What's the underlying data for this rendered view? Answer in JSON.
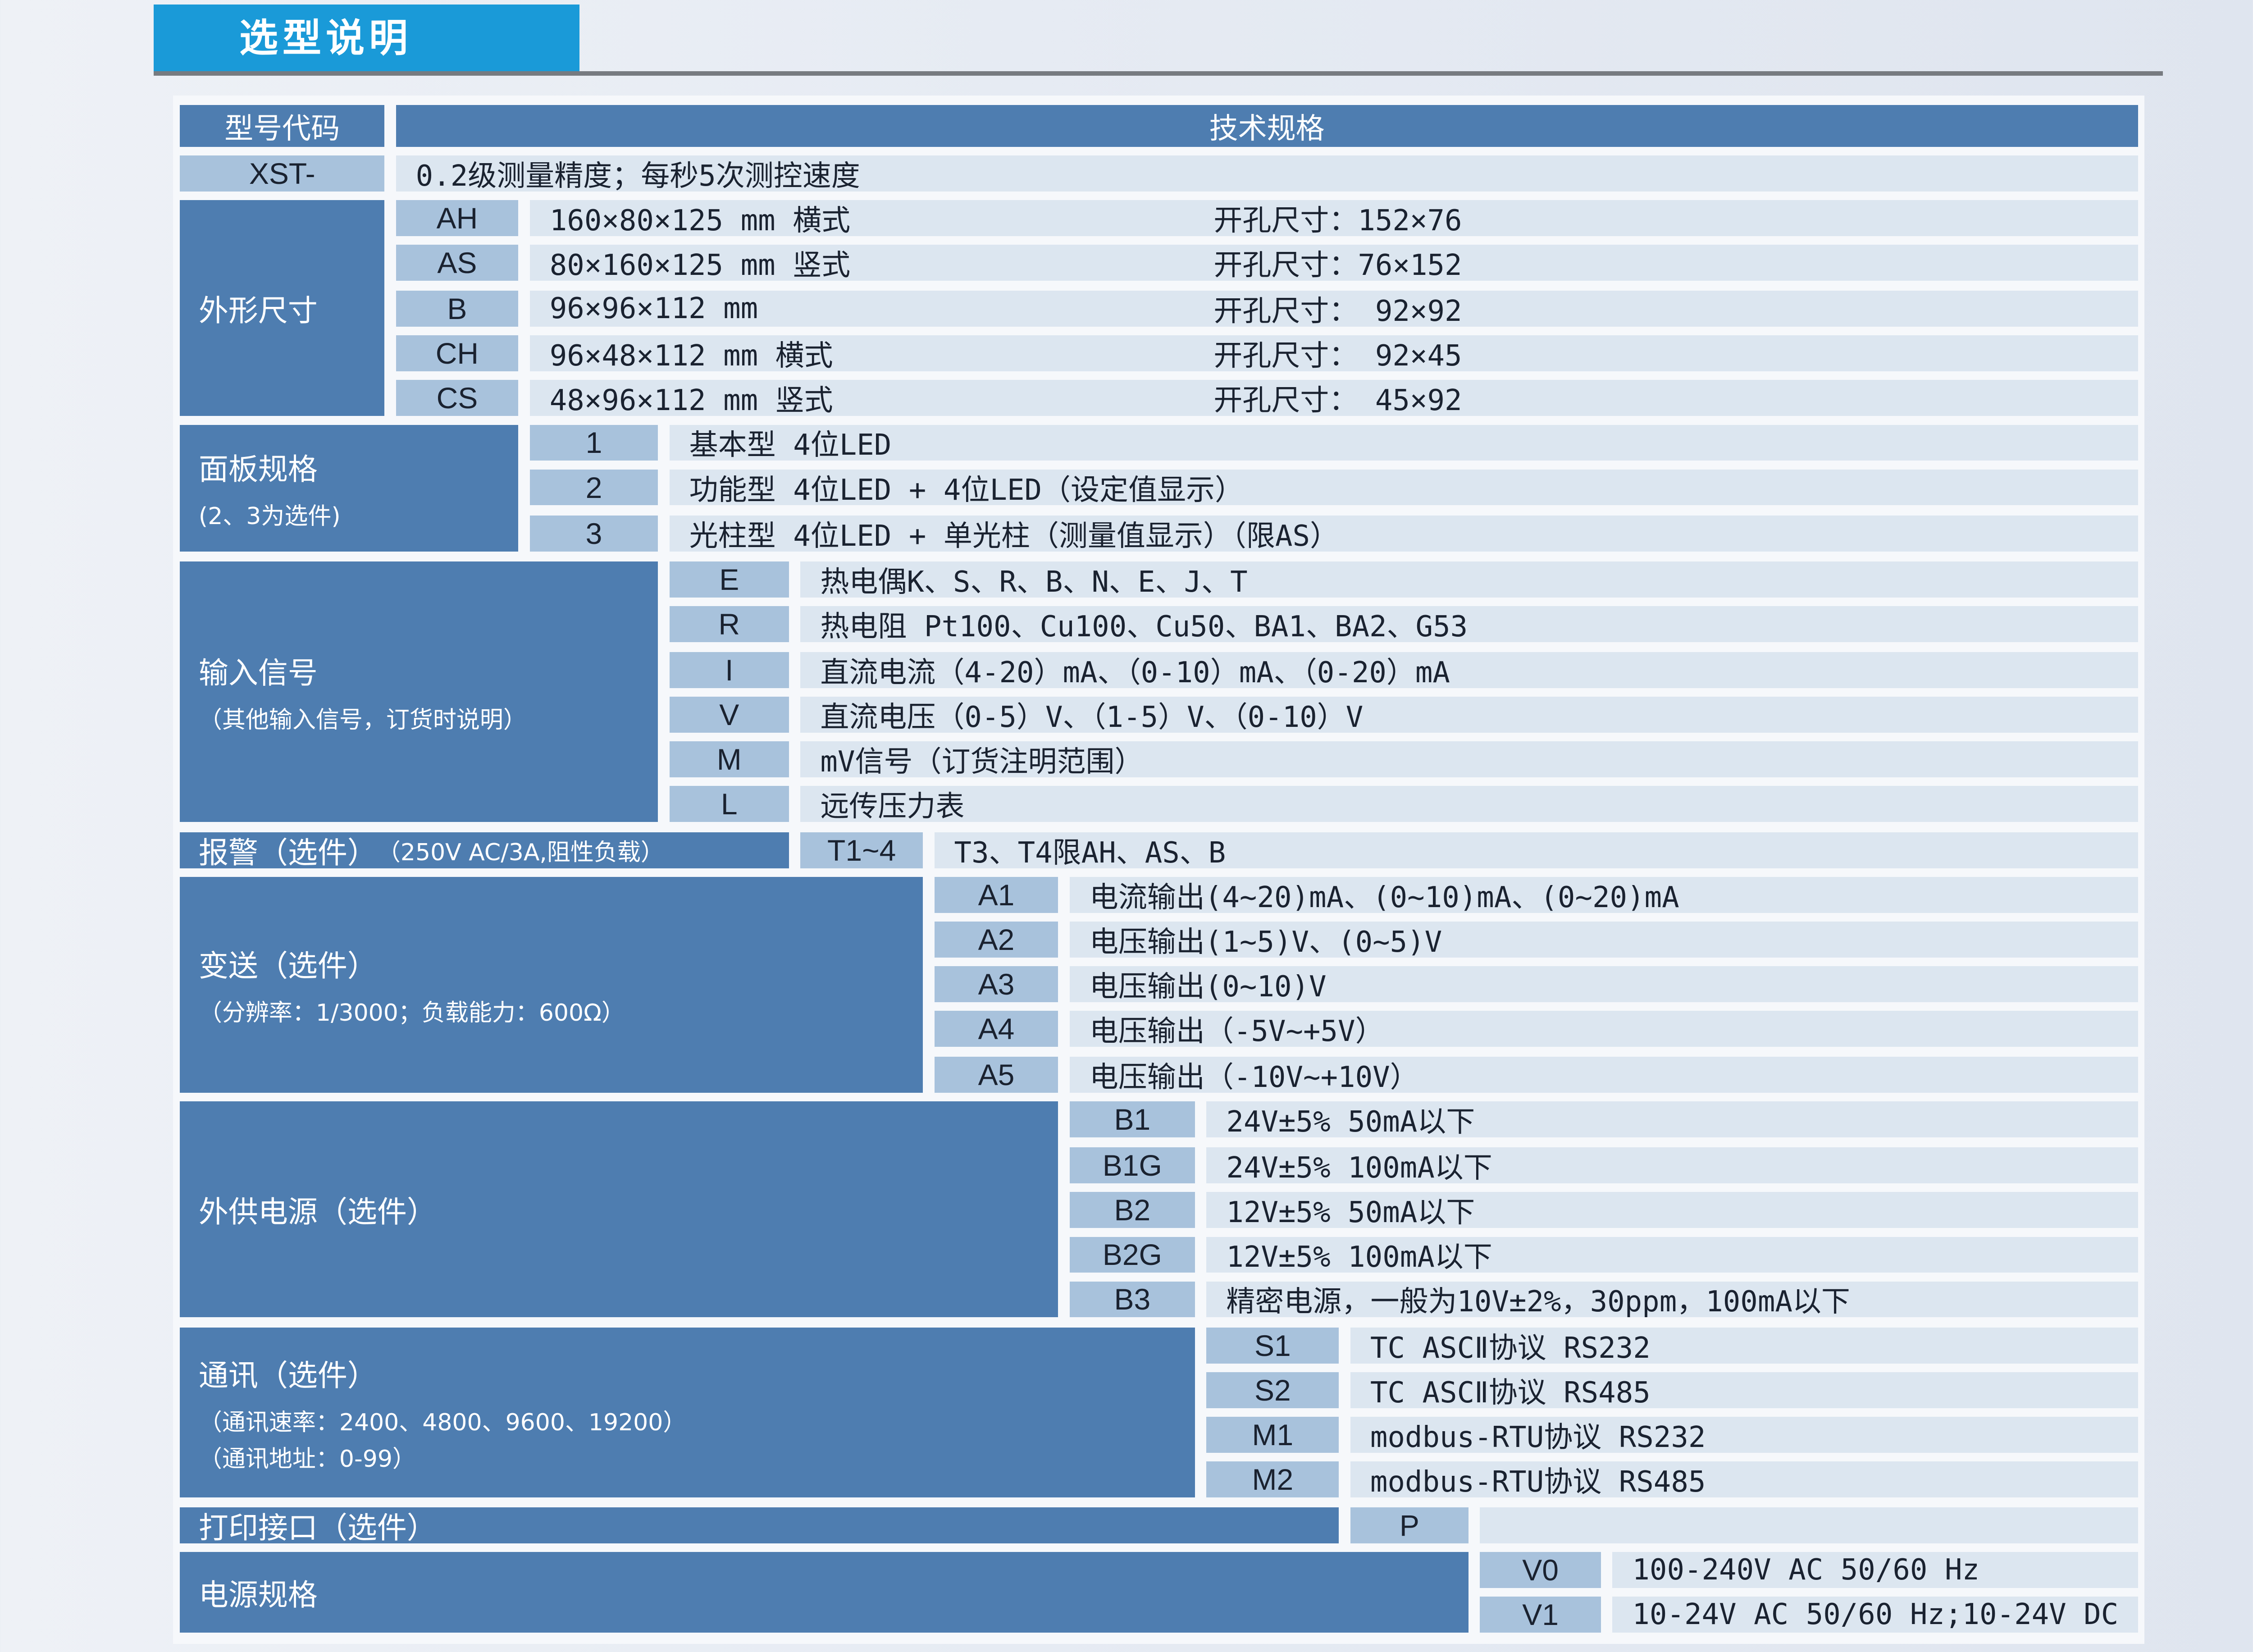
{
  "section_title": "选型说明",
  "header": {
    "code": "型号代码",
    "spec": "技术规格"
  },
  "xst": {
    "code": "XST-",
    "text": "0.2级测量精度；每秒5次测控速度"
  },
  "size": {
    "title": "外形尺寸",
    "rows": [
      {
        "code": "AH",
        "dim": "160×80×125 mm 横式",
        "hole": "开孔尺寸：152×76"
      },
      {
        "code": "AS",
        "dim": " 80×160×125 mm 竖式",
        "hole": "开孔尺寸：76×152"
      },
      {
        "code": "B",
        "dim": " 96×96×112 mm",
        "hole": "开孔尺寸： 92×92"
      },
      {
        "code": "CH",
        "dim": " 96×48×112 mm 横式",
        "hole": "开孔尺寸： 92×45"
      },
      {
        "code": "CS",
        "dim": " 48×96×112 mm 竖式",
        "hole": "开孔尺寸： 45×92"
      }
    ]
  },
  "panel": {
    "title": "面板规格",
    "note": "(2、3为选件)",
    "rows": [
      {
        "code": "1",
        "text": "基本型 4位LED"
      },
      {
        "code": "2",
        "text": "功能型 4位LED + 4位LED（设定值显示）"
      },
      {
        "code": "3",
        "text": "光柱型 4位LED + 单光柱（测量值显示）（限AS）"
      }
    ]
  },
  "input": {
    "title": "输入信号",
    "note": "（其他输入信号，订货时说明）",
    "rows": [
      {
        "code": "E",
        "text": "热电偶K、S、R、B、N、E、J、T"
      },
      {
        "code": "R",
        "text": "热电阻 Pt100、Cu100、Cu50、BA1、BA2、G53"
      },
      {
        "code": "I",
        "text": "直流电流（4-20）mA、（0-10）mA、（0-20）mA"
      },
      {
        "code": "V",
        "text": "直流电压（0-5）V、（1-5）V、（0-10）V"
      },
      {
        "code": "M",
        "text": "mV信号（订货注明范围）"
      },
      {
        "code": "L",
        "text": "远传压力表"
      }
    ]
  },
  "alarm": {
    "title": "报警（选件）",
    "note": "（250V AC/3A,阻性负载）",
    "code": "T1~4",
    "text": "T3、T4限AH、AS、B"
  },
  "transmit": {
    "title": "变送（选件）",
    "note": "（分辨率：1/3000；负载能力：600Ω）",
    "rows": [
      {
        "code": "A1",
        "text": "电流输出(4~20)mA、(0~10)mA、(0~20)mA"
      },
      {
        "code": "A2",
        "text": "电压输出(1~5)V、(0~5)V"
      },
      {
        "code": "A3",
        "text": "电压输出(0~10)V"
      },
      {
        "code": "A4",
        "text": "电压输出（-5V~+5V）"
      },
      {
        "code": "A5",
        "text": "电压输出（-10V~+10V）"
      }
    ]
  },
  "supply": {
    "title": "外供电源（选件）",
    "rows": [
      {
        "code": "B1",
        "text": "24V±5% 50mA以下"
      },
      {
        "code": "B1G",
        "text": "24V±5% 100mA以下"
      },
      {
        "code": "B2",
        "text": "12V±5% 50mA以下"
      },
      {
        "code": "B2G",
        "text": "12V±5% 100mA以下"
      },
      {
        "code": "B3",
        "text": "精密电源，一般为10V±2%，30ppm，100mA以下"
      }
    ]
  },
  "comm": {
    "title": "通讯（选件）",
    "note1": "（通讯速率：2400、4800、9600、19200）",
    "note2": "（通讯地址：0-99）",
    "rows": [
      {
        "code": "S1",
        "text": "TC  ASCⅡ协议 RS232"
      },
      {
        "code": "S2",
        "text": "TC  ASCⅡ协议 RS485"
      },
      {
        "code": "M1",
        "text": "modbus-RTU协议 RS232"
      },
      {
        "code": "M2",
        "text": "modbus-RTU协议 RS485"
      }
    ]
  },
  "print": {
    "title": "打印接口（选件）",
    "code": "P",
    "text": ""
  },
  "power": {
    "title": "电源规格",
    "rows": [
      {
        "code": "V0",
        "text": "100-240V AC 50/60 Hz"
      },
      {
        "code": "V1",
        "text": "10-24V AC 50/60 Hz;10-24V DC"
      }
    ]
  }
}
